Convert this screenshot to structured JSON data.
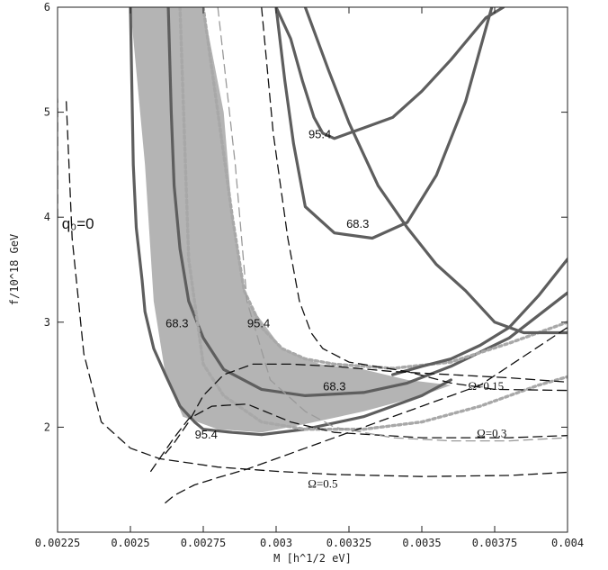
{
  "chart_data": {
    "type": "line",
    "xlabel": "M [h^1/2 eV]",
    "ylabel": "f/10^18 GeV",
    "xlim": [
      0.00225,
      0.004
    ],
    "ylim": [
      1.0,
      6.0
    ],
    "x_ticks": [
      "0.00225",
      "0.0025",
      "0.00275",
      "0.003",
      "0.00325",
      "0.0035",
      "0.00375",
      "0.004"
    ],
    "y_ticks": [
      "2",
      "3",
      "4",
      "5",
      "6"
    ],
    "grid": false,
    "legend": "none",
    "colors": {
      "shade": "#b4b4b4",
      "contour": "#5e5e5e",
      "dotted": "#a8a8a8",
      "dashed": "#111111",
      "light_dash": "#9a9a9a"
    },
    "shaded_region": {
      "x": [
        0.0025,
        0.00275,
        0.00282,
        0.00285,
        0.0029,
        0.00302,
        0.00315,
        0.0033,
        0.00345,
        0.0036,
        0.0035,
        0.0033,
        0.0031,
        0.00295,
        0.0028,
        0.00268,
        0.00262,
        0.00258,
        0.00255,
        0.0025
      ],
      "y": [
        6.0,
        6.0,
        5.0,
        4.0,
        3.2,
        2.75,
        2.6,
        2.55,
        2.45,
        2.4,
        2.3,
        2.15,
        2.03,
        1.95,
        1.98,
        2.1,
        2.5,
        3.2,
        4.5,
        6.0
      ]
    },
    "series": [
      {
        "style": "solid",
        "x": [
          0.0025,
          0.00251,
          0.00252,
          0.00254,
          0.00255,
          0.00258,
          0.00262,
          0.00267,
          0.00272,
          0.00275,
          0.00285,
          0.00295,
          0.0031,
          0.0033,
          0.0035,
          0.0036
        ],
        "y": [
          6.0,
          4.5,
          3.9,
          3.4,
          3.1,
          2.75,
          2.5,
          2.2,
          2.05,
          1.98,
          1.95,
          1.93,
          1.98,
          2.1,
          2.3,
          2.45
        ]
      },
      {
        "style": "solid",
        "x": [
          0.00263,
          0.00264,
          0.00265,
          0.00267,
          0.0027,
          0.00275,
          0.00282,
          0.00295,
          0.0031,
          0.0033,
          0.00345,
          0.0036,
          0.0038,
          0.004
        ],
        "y": [
          6.0,
          5.0,
          4.3,
          3.7,
          3.2,
          2.85,
          2.55,
          2.36,
          2.3,
          2.33,
          2.42,
          2.58,
          2.85,
          3.28
        ]
      },
      {
        "style": "dotted",
        "x": [
          0.00275,
          0.00285,
          0.00289,
          0.00295,
          0.00302,
          0.0031,
          0.0032,
          0.0034,
          0.0036,
          0.0038,
          0.004
        ],
        "y": [
          6.0,
          4.0,
          3.3,
          2.95,
          2.75,
          2.65,
          2.6,
          2.56,
          2.62,
          2.8,
          3.0
        ]
      },
      {
        "style": "dotted",
        "x": [
          0.00267,
          0.0027,
          0.00275,
          0.00282,
          0.00295,
          0.0031,
          0.0033,
          0.0035,
          0.0037,
          0.0039,
          0.004
        ],
        "y": [
          6.0,
          3.6,
          2.6,
          2.3,
          2.05,
          1.98,
          1.98,
          2.05,
          2.2,
          2.4,
          2.48
        ]
      },
      {
        "style": "solid",
        "x": [
          0.0031,
          0.00318,
          0.00325,
          0.00335,
          0.00345,
          0.00355,
          0.00365,
          0.0037,
          0.00375,
          0.00385,
          0.004
        ],
        "y": [
          6.0,
          5.4,
          4.9,
          4.3,
          3.9,
          3.55,
          3.3,
          3.15,
          3.0,
          2.9,
          2.9
        ]
      },
      {
        "style": "solid",
        "x": [
          0.003,
          0.00305,
          0.00309,
          0.00313,
          0.00316,
          0.0032,
          0.00325,
          0.0033,
          0.0034,
          0.0035,
          0.0036,
          0.00372,
          0.00378
        ],
        "y": [
          6.0,
          5.7,
          5.3,
          4.95,
          4.8,
          4.75,
          4.8,
          4.85,
          4.95,
          5.2,
          5.5,
          5.9,
          6.0
        ]
      },
      {
        "style": "solid",
        "x": [
          0.003,
          0.00303,
          0.00306,
          0.0031,
          0.0032,
          0.00333,
          0.00345,
          0.00355,
          0.00365,
          0.0037,
          0.00374
        ],
        "y": [
          6.0,
          5.3,
          4.7,
          4.1,
          3.85,
          3.8,
          3.95,
          4.4,
          5.1,
          5.6,
          6.0
        ]
      },
      {
        "style": "solid",
        "x": [
          0.0034,
          0.0035,
          0.0036,
          0.0037,
          0.0038,
          0.0039,
          0.004
        ],
        "y": [
          2.5,
          2.58,
          2.65,
          2.78,
          2.95,
          3.25,
          3.6
        ]
      },
      {
        "style": "dashed",
        "x": [
          0.00295,
          0.00299,
          0.00304,
          0.00308,
          0.00312,
          0.00316,
          0.00325,
          0.00345,
          0.0036,
          0.00375,
          0.004
        ],
        "y": [
          6.0,
          4.8,
          3.8,
          3.2,
          2.9,
          2.75,
          2.62,
          2.53,
          2.42,
          2.36,
          2.35
        ]
      },
      {
        "style": "dashed",
        "x": [
          0.00262,
          0.00265,
          0.0027,
          0.00275,
          0.00282,
          0.00292,
          0.00305,
          0.0032,
          0.0034,
          0.0036,
          0.0038,
          0.004
        ],
        "y": [
          1.75,
          1.85,
          2.05,
          2.3,
          2.5,
          2.6,
          2.6,
          2.58,
          2.53,
          2.5,
          2.47,
          2.43
        ]
      },
      {
        "style": "dashed",
        "x": [
          0.00257,
          0.0026,
          0.00265,
          0.0027,
          0.00278,
          0.0029,
          0.00305,
          0.0032,
          0.0035,
          0.0038,
          0.004
        ],
        "y": [
          1.58,
          1.7,
          1.9,
          2.08,
          2.2,
          2.22,
          2.05,
          1.95,
          1.9,
          1.9,
          1.92
        ]
      },
      {
        "style": "dashed",
        "x": [
          0.00228,
          0.0023,
          0.00234,
          0.0024,
          0.0025,
          0.0026,
          0.0028,
          0.003,
          0.0032,
          0.0035,
          0.0038,
          0.004
        ],
        "y": [
          5.1,
          3.8,
          2.7,
          2.05,
          1.8,
          1.7,
          1.62,
          1.58,
          1.55,
          1.53,
          1.54,
          1.57
        ]
      },
      {
        "style": "dashed",
        "x": [
          0.00224,
          0.00225,
          0.00225
        ],
        "y": [
          6.0,
          5.1,
          4.0
        ]
      },
      {
        "style": "dashed",
        "x": [
          0.00262,
          0.00265,
          0.00272,
          0.0028,
          0.0029,
          0.003,
          0.0031,
          0.0033,
          0.0035,
          0.0037,
          0.004
        ],
        "y": [
          1.28,
          1.35,
          1.45,
          1.52,
          1.6,
          1.7,
          1.8,
          2.0,
          2.2,
          2.4,
          2.95
        ]
      },
      {
        "style": "light-dash",
        "x": [
          0.0028,
          0.00286,
          0.0029,
          0.00298,
          0.0031,
          0.0032,
          0.0034,
          0.0036,
          0.0038,
          0.004
        ],
        "y": [
          6.0,
          4.5,
          3.2,
          2.45,
          2.15,
          2.0,
          1.9,
          1.87,
          1.87,
          1.9
        ]
      }
    ],
    "annotations": [
      {
        "text": "95.4",
        "x": 0.00315,
        "y": 4.78
      },
      {
        "text": "68.3",
        "x": 0.00328,
        "y": 3.93
      },
      {
        "text": "68.3",
        "x": 0.00266,
        "y": 2.98
      },
      {
        "text": "95.4",
        "x": 0.00294,
        "y": 2.98
      },
      {
        "text": "68.3",
        "x": 0.0032,
        "y": 2.38
      },
      {
        "text": "95.4",
        "x": 0.00276,
        "y": 1.92
      },
      {
        "text": "Ω=0.15",
        "x": 0.00372,
        "y": 2.38
      },
      {
        "text": "Ω=0.3",
        "x": 0.00374,
        "y": 1.93
      },
      {
        "text": "Ω=0.5",
        "x": 0.00316,
        "y": 1.45
      },
      {
        "text": "q₀=0",
        "x": 0.00232,
        "y": 3.93
      }
    ]
  }
}
